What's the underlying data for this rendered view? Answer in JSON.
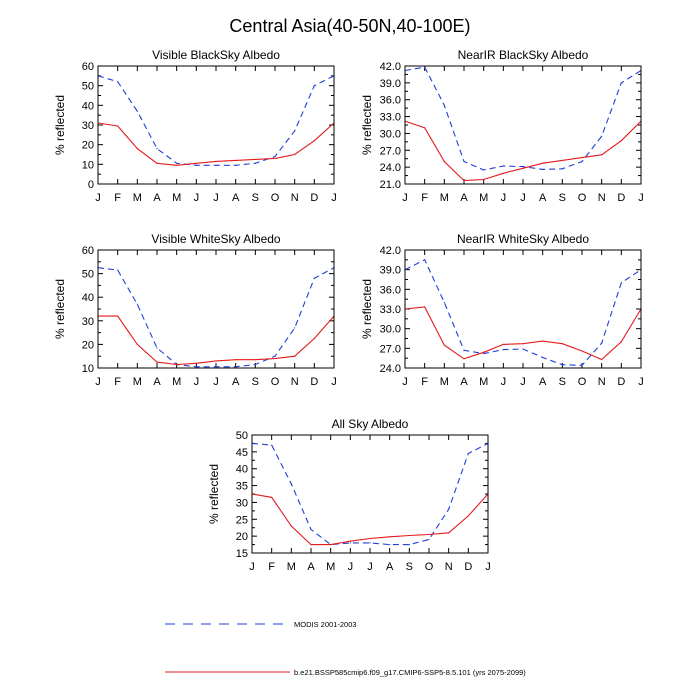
{
  "figure_title": "Central Asia(40-50N,40-100E)",
  "colors": {
    "modis": "#1f3fd8",
    "model": "#e31a1c",
    "axis": "#000000"
  },
  "legend": [
    {
      "label": "MODIS 2001-2003",
      "series": "modis",
      "dash": true
    },
    {
      "label": "b.e21.BSSP585cmip6.f09_g17.CMIP6-SSP5-8.5.101 (yrs 2075-2099)",
      "series": "model",
      "dash": false
    }
  ],
  "chart_data": [
    {
      "type": "line",
      "title": "Visible BlackSky Albedo",
      "ylabel": "% reflected",
      "x": [
        "J",
        "F",
        "M",
        "A",
        "M",
        "J",
        "J",
        "A",
        "S",
        "O",
        "N",
        "D",
        "J"
      ],
      "ylim": [
        0,
        60
      ],
      "yticks": [
        "0",
        "10",
        "20",
        "30",
        "40",
        "50",
        "60"
      ],
      "series": [
        {
          "name": "MODIS 2001-2003",
          "key": "modis",
          "values": [
            55,
            52,
            37,
            18,
            10.5,
            9.5,
            9.5,
            9.5,
            10.5,
            14,
            27,
            50,
            55
          ]
        },
        {
          "name": "b.e21.BSSP585cmip6.f09_g17.CMIP6-SSP5-8.5.101 (yrs 2075-2099)",
          "key": "model",
          "values": [
            31,
            29.5,
            18,
            10.5,
            9.5,
            10.5,
            11.5,
            12,
            12.5,
            13,
            15,
            22,
            31
          ]
        }
      ]
    },
    {
      "type": "line",
      "title": "NearIR BlackSky Albedo",
      "ylabel": "% reflected",
      "x": [
        "J",
        "F",
        "M",
        "A",
        "M",
        "J",
        "J",
        "A",
        "S",
        "O",
        "N",
        "D",
        "J"
      ],
      "ylim": [
        21,
        42
      ],
      "yticks": [
        "21.0",
        "24.0",
        "27.0",
        "30.0",
        "33.0",
        "36.0",
        "39.0",
        "42.0"
      ],
      "series": [
        {
          "name": "MODIS 2001-2003",
          "key": "modis",
          "values": [
            41.2,
            41.8,
            35,
            25,
            23.5,
            24.2,
            24.1,
            23.6,
            23.7,
            25,
            29.5,
            39,
            41.2
          ]
        },
        {
          "name": "b.e21.BSSP585cmip6.f09_g17.CMIP6-SSP5-8.5.101 (yrs 2075-2099)",
          "key": "model",
          "values": [
            32.2,
            31,
            25,
            21.6,
            21.8,
            22.9,
            23.8,
            24.7,
            25.2,
            25.7,
            26.2,
            28.7,
            32.2
          ]
        }
      ]
    },
    {
      "type": "line",
      "title": "Visible WhiteSky Albedo",
      "ylabel": "% reflected",
      "x": [
        "J",
        "F",
        "M",
        "A",
        "M",
        "J",
        "J",
        "A",
        "S",
        "O",
        "N",
        "D",
        "J"
      ],
      "ylim": [
        10,
        60
      ],
      "yticks": [
        "10",
        "20",
        "30",
        "40",
        "50",
        "60"
      ],
      "series": [
        {
          "name": "MODIS 2001-2003",
          "key": "modis",
          "values": [
            52.5,
            51.5,
            37,
            18.5,
            11.5,
            10.5,
            10.5,
            10.5,
            11.5,
            15,
            27,
            48,
            52.5
          ]
        },
        {
          "name": "b.e21.BSSP585cmip6.f09_g17.CMIP6-SSP5-8.5.101 (yrs 2075-2099)",
          "key": "model",
          "values": [
            32,
            32,
            20,
            12.5,
            11.5,
            12,
            13,
            13.5,
            13.5,
            14,
            15,
            22.5,
            32
          ]
        }
      ]
    },
    {
      "type": "line",
      "title": "NearIR WhiteSky Albedo",
      "ylabel": "% reflected",
      "x": [
        "J",
        "F",
        "M",
        "A",
        "M",
        "J",
        "J",
        "A",
        "S",
        "O",
        "N",
        "D",
        "J"
      ],
      "ylim": [
        24,
        42
      ],
      "yticks": [
        "24.0",
        "27.0",
        "30.0",
        "33.0",
        "36.0",
        "39.0",
        "42.0"
      ],
      "series": [
        {
          "name": "MODIS 2001-2003",
          "key": "modis",
          "values": [
            39,
            40.5,
            34,
            26.7,
            26.2,
            26.8,
            26.9,
            25.6,
            24.5,
            24.4,
            27.8,
            37,
            39
          ]
        },
        {
          "name": "b.e21.BSSP585cmip6.f09_g17.CMIP6-SSP5-8.5.101 (yrs 2075-2099)",
          "key": "model",
          "values": [
            33,
            33.3,
            27.5,
            25.4,
            26.4,
            27.6,
            27.7,
            28.1,
            27.7,
            26.6,
            25.3,
            28,
            33
          ]
        }
      ]
    },
    {
      "type": "line",
      "title": "All Sky Albedo",
      "ylabel": "% reflected",
      "x": [
        "J",
        "F",
        "M",
        "A",
        "M",
        "J",
        "J",
        "A",
        "S",
        "O",
        "N",
        "D",
        "J"
      ],
      "ylim": [
        15,
        50
      ],
      "yticks": [
        "15",
        "20",
        "25",
        "30",
        "35",
        "40",
        "45",
        "50"
      ],
      "series": [
        {
          "name": "MODIS 2001-2003",
          "key": "modis",
          "values": [
            47.5,
            47,
            35.5,
            22,
            17.5,
            18,
            18,
            17.5,
            17.5,
            19,
            28,
            44.5,
            47.5
          ]
        },
        {
          "name": "b.e21.BSSP585cmip6.f09_g17.CMIP6-SSP5-8.5.101 (yrs 2075-2099)",
          "key": "model",
          "values": [
            32.5,
            31.5,
            23,
            17.5,
            17.5,
            18.5,
            19.3,
            19.8,
            20.2,
            20.5,
            21,
            26,
            32.5
          ]
        }
      ]
    }
  ]
}
